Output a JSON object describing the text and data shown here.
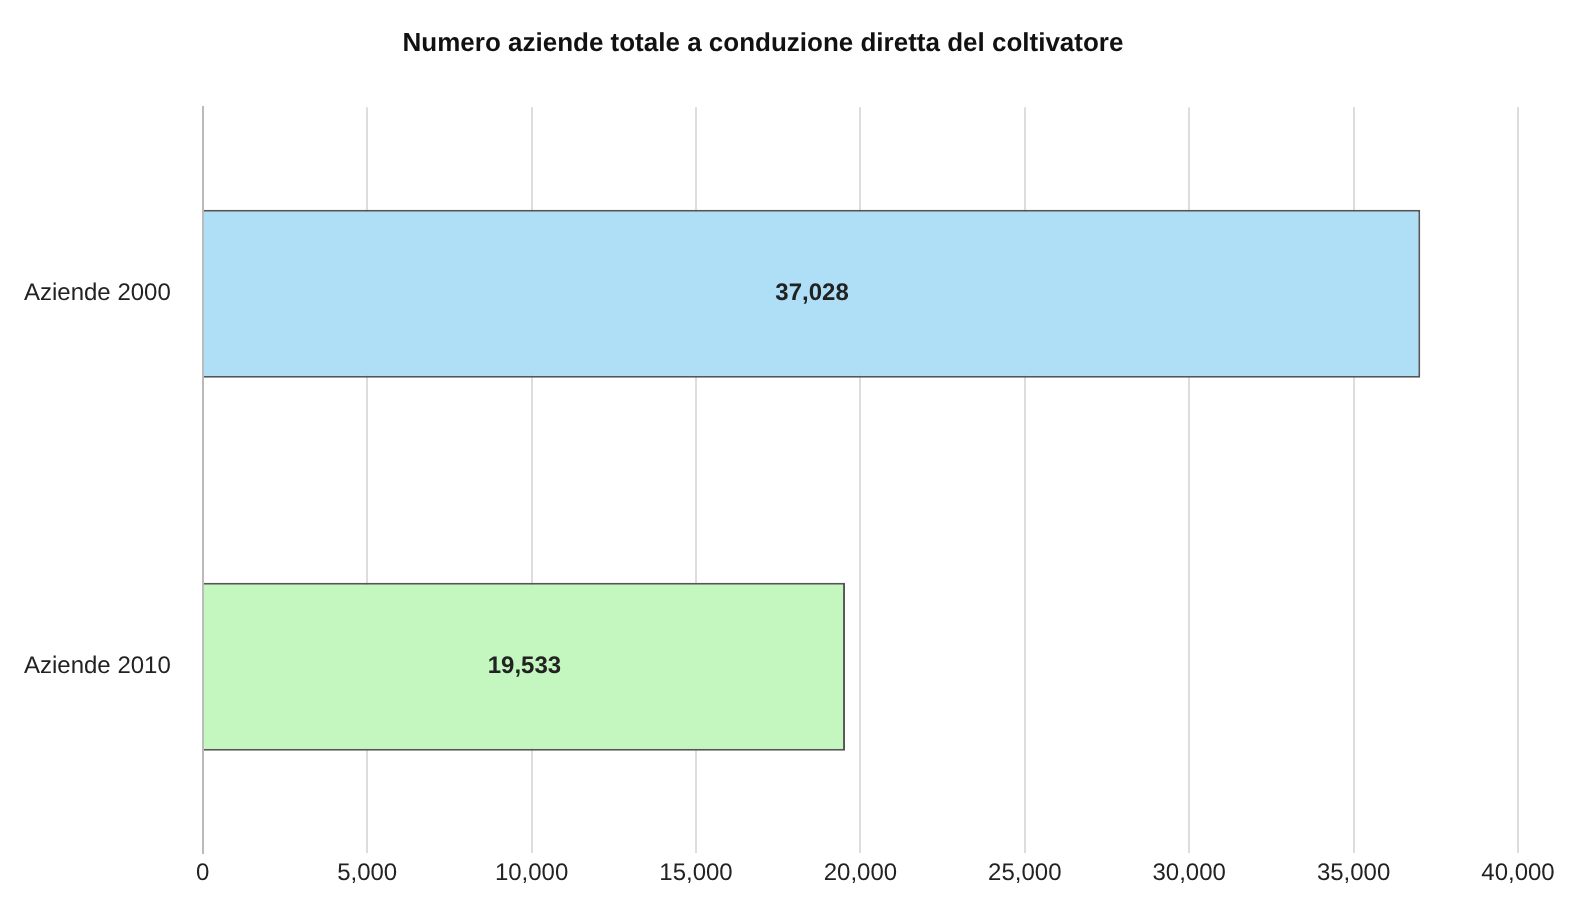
{
  "chart_data": {
    "type": "bar",
    "orientation": "horizontal",
    "title": "Numero aziende totale a conduzione diretta del coltivatore",
    "categories": [
      "Aziende 2000",
      "Aziende 2010"
    ],
    "values": [
      37028,
      19533
    ],
    "value_labels": [
      "37,028",
      "19,533"
    ],
    "colors": [
      "#aedff7",
      "#c4f7c0"
    ],
    "xlim": [
      0,
      40000
    ],
    "xticks": [
      {
        "value": 0,
        "label": "0"
      },
      {
        "value": 5000,
        "label": "5,000"
      },
      {
        "value": 10000,
        "label": "10,000"
      },
      {
        "value": 15000,
        "label": "15,000"
      },
      {
        "value": 20000,
        "label": "20,000"
      },
      {
        "value": 25000,
        "label": "25,000"
      },
      {
        "value": 30000,
        "label": "30,000"
      },
      {
        "value": 35000,
        "label": "35,000"
      },
      {
        "value": 40000,
        "label": "40,000"
      }
    ],
    "grid": "x",
    "legend": false
  }
}
